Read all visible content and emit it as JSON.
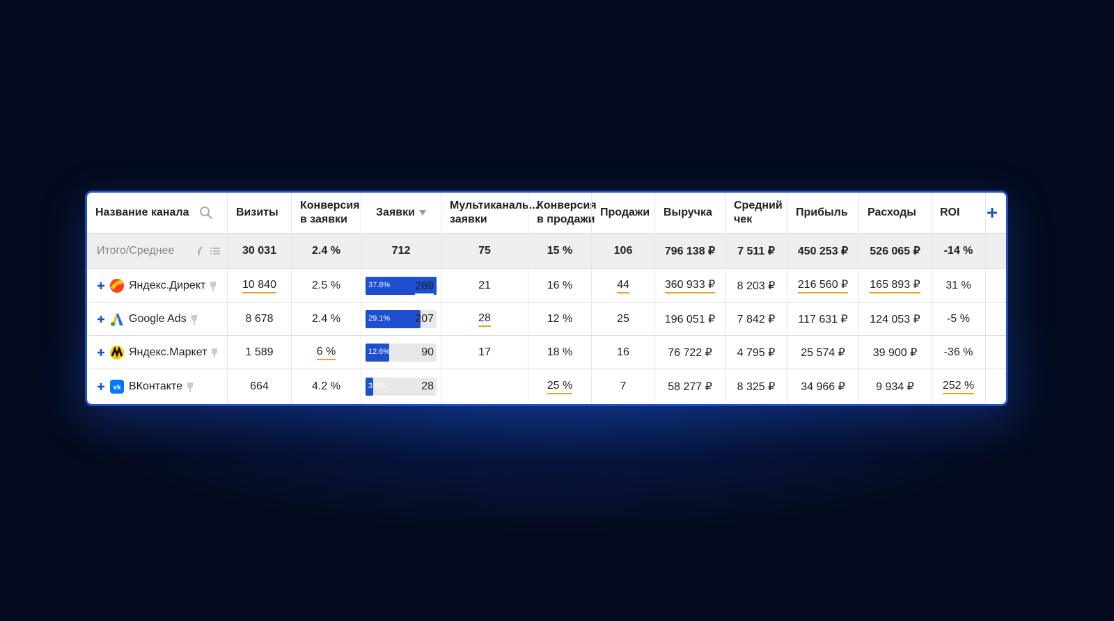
{
  "header": {
    "columns": [
      "Название канала",
      "Визиты",
      "Конверсия\nв заявки",
      "Заявки",
      "Мультиканаль...\nзаявки",
      "Конверсия\nв продажи",
      "Продажи",
      "Выручка",
      "Средний\nчек",
      "Прибыль",
      "Расходы",
      "ROI"
    ]
  },
  "total": {
    "label": "Итого/Среднее",
    "cells": [
      "30 031",
      "2.4 %",
      "712",
      "75",
      "15 %",
      "106",
      "796 138 ₽",
      "7 511 ₽",
      "450 253 ₽",
      "526 065 ₽",
      "-14 %"
    ]
  },
  "rows": [
    {
      "name": "Яндекс.Директ",
      "cells": [
        "10 840",
        "2.5 %",
        "289",
        "21",
        "16 %",
        "44",
        "360 933 ₽",
        "8 203 ₽",
        "216 560 ₽",
        "165 893 ₽",
        "31 %"
      ],
      "share": {
        "value": 37.8,
        "label": "37.8%"
      },
      "underline": [
        0,
        2,
        5,
        6,
        8,
        9
      ]
    },
    {
      "name": "Google Ads",
      "cells": [
        "8 678",
        "2.4 %",
        "207",
        "28",
        "12 %",
        "25",
        "196 051 ₽",
        "7 842 ₽",
        "117 631 ₽",
        "124 053 ₽",
        "-5 %"
      ],
      "share": {
        "value": 29.1,
        "label": "29.1%"
      },
      "underline": [
        3
      ]
    },
    {
      "name": "Яндекс.Маркет",
      "cells": [
        "1 589",
        "6 %",
        "90",
        "17",
        "18 %",
        "16",
        "76 722 ₽",
        "4 795 ₽",
        "25 574 ₽",
        "39 900 ₽",
        "-36 %"
      ],
      "share": {
        "value": 12.6,
        "label": "12.6%"
      },
      "underline": [
        1
      ]
    },
    {
      "name": "ВКонтакте",
      "cells": [
        "664",
        "4.2 %",
        "28",
        null,
        "25 %",
        "7",
        "58 277 ₽",
        "8 325 ₽",
        "34 966 ₽",
        "9 934 ₽",
        "252 %"
      ],
      "share": {
        "value": 3.9,
        "label": "3.9%"
      },
      "underline": [
        4,
        10
      ]
    }
  ]
}
